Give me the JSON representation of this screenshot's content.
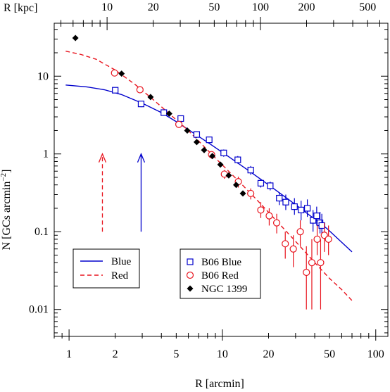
{
  "chart_data": {
    "type": "scatter",
    "xlabel": "R [arcmin]",
    "x2label": "R [kpc]",
    "ylabel_main": "N [GCs arcmin",
    "ylabel_exp": "−2",
    "ylabel_close": "]",
    "xscale": "log",
    "yscale": "log",
    "xlim": [
      0.8,
      120
    ],
    "ylim": [
      0.0045,
      48
    ],
    "xticks": [
      1,
      2,
      5,
      10,
      20,
      50,
      100
    ],
    "xtick_labels": [
      "1",
      "2",
      "5",
      "10",
      "20",
      "50",
      "100"
    ],
    "yticks": [
      0.01,
      0.1,
      1,
      10
    ],
    "ytick_labels": [
      "0.01",
      "0.1",
      "1",
      "10"
    ],
    "x2ticks_kpc": [
      10,
      20,
      50,
      100,
      200,
      500
    ],
    "x2tick_labels": [
      "10",
      "20",
      "50",
      "100",
      "200",
      "500"
    ],
    "kpc_per_arcmin": 5.65,
    "grid": false,
    "colors": {
      "blue": "#0000cc",
      "red": "#e8141e",
      "black": "#000000"
    },
    "legend_lines": {
      "position": "bottom-left",
      "entries": [
        {
          "label": "Blue",
          "style": "solid",
          "color": "#0000cc"
        },
        {
          "label": "Red",
          "style": "dashed",
          "color": "#e8141e"
        }
      ]
    },
    "legend_points": {
      "position": "bottom-center",
      "entries": [
        {
          "label": "B06 Blue",
          "marker": "square",
          "color": "#0000cc"
        },
        {
          "label": "B06 Red",
          "marker": "circle",
          "color": "#e8141e"
        },
        {
          "label": "NGC 1399",
          "marker": "diamond",
          "color": "#000000"
        }
      ]
    },
    "arrows": [
      {
        "series": "Red",
        "x": 1.65,
        "y_from": 0.1,
        "y_to": 1.0,
        "style": "dashed",
        "color": "#e8141e"
      },
      {
        "series": "Blue",
        "x": 2.95,
        "y_from": 0.1,
        "y_to": 1.0,
        "style": "solid",
        "color": "#0000cc"
      }
    ],
    "series": [
      {
        "name": "Blue",
        "kind": "line",
        "style": "solid",
        "color": "#0000cc",
        "x": [
          0.95,
          1.3,
          1.7,
          2.2,
          3.0,
          4.0,
          5.0,
          6.5,
          8.5,
          11,
          15,
          20,
          27,
          36,
          48,
          70
        ],
        "y": [
          7.7,
          7.3,
          6.7,
          5.8,
          4.5,
          3.4,
          2.6,
          1.85,
          1.3,
          0.92,
          0.6,
          0.4,
          0.26,
          0.17,
          0.11,
          0.055
        ]
      },
      {
        "name": "Red",
        "kind": "line",
        "style": "dashed",
        "color": "#e8141e",
        "x": [
          0.95,
          1.2,
          1.5,
          2.0,
          2.7,
          3.5,
          4.5,
          6.0,
          8.0,
          10,
          13,
          17,
          22,
          30,
          40,
          50,
          60,
          70
        ],
        "y": [
          21,
          19,
          16.5,
          12,
          7.8,
          5.1,
          3.3,
          2.0,
          1.12,
          0.72,
          0.43,
          0.25,
          0.145,
          0.075,
          0.04,
          0.025,
          0.018,
          0.013
        ]
      },
      {
        "name": "B06 Blue",
        "kind": "points",
        "marker": "square",
        "color": "#0000cc",
        "x": [
          2.0,
          2.95,
          4.15,
          5.35,
          6.8,
          8.2,
          10.2,
          12.6,
          15.3,
          17.8,
          20.5,
          23.5,
          25.9,
          29.5,
          32.6,
          35.8,
          39.0,
          41.2,
          43.3,
          44.5
        ],
        "y": [
          6.6,
          4.4,
          3.4,
          2.85,
          1.78,
          1.52,
          1.03,
          0.84,
          0.62,
          0.42,
          0.39,
          0.27,
          0.24,
          0.21,
          0.19,
          0.2,
          0.14,
          0.16,
          0.13,
          0.12
        ],
        "err_lo": [
          6.1,
          4.0,
          3.15,
          2.6,
          1.6,
          1.38,
          0.92,
          0.75,
          0.54,
          0.37,
          0.34,
          0.22,
          0.19,
          0.165,
          0.14,
          0.155,
          0.1,
          0.12,
          0.095,
          0.085
        ],
        "err_hi": [
          7.1,
          4.8,
          3.7,
          3.1,
          1.96,
          1.67,
          1.14,
          0.94,
          0.7,
          0.48,
          0.44,
          0.32,
          0.3,
          0.27,
          0.25,
          0.26,
          0.19,
          0.21,
          0.18,
          0.17
        ]
      },
      {
        "name": "B06 Red",
        "kind": "points",
        "marker": "circle",
        "color": "#e8141e",
        "x": [
          1.98,
          2.9,
          5.2,
          8.5,
          10.3,
          12.7,
          15.3,
          17.8,
          20.2,
          22.6,
          25.7,
          29.0,
          32.2,
          35.3,
          38.3,
          41.5,
          43.7,
          46.2,
          49.2
        ],
        "y": [
          11.0,
          6.7,
          2.4,
          0.98,
          0.55,
          0.44,
          0.31,
          0.19,
          0.16,
          0.13,
          0.07,
          0.06,
          0.1,
          0.03,
          0.04,
          0.08,
          0.04,
          0.09,
          0.08
        ],
        "err_lo": [
          10.4,
          6.3,
          2.2,
          0.87,
          0.48,
          0.37,
          0.26,
          0.15,
          0.12,
          0.095,
          0.045,
          0.035,
          0.065,
          0.01,
          0.01,
          0.05,
          0.01,
          0.055,
          0.05
        ],
        "err_hi": [
          11.6,
          7.1,
          2.6,
          1.08,
          0.62,
          0.51,
          0.36,
          0.24,
          0.2,
          0.17,
          0.1,
          0.09,
          0.14,
          0.065,
          0.08,
          0.12,
          0.08,
          0.13,
          0.12
        ]
      },
      {
        "name": "NGC 1399",
        "kind": "points",
        "marker": "diamond",
        "color": "#000000",
        "x": [
          1.1,
          2.2,
          3.4,
          4.5,
          5.9,
          6.8,
          7.6,
          8.6,
          9.7,
          11.0,
          12.3,
          13.6
        ],
        "y": [
          31,
          10.8,
          5.4,
          3.3,
          2.0,
          1.42,
          1.12,
          0.94,
          0.73,
          0.53,
          0.4,
          0.31
        ]
      }
    ]
  }
}
